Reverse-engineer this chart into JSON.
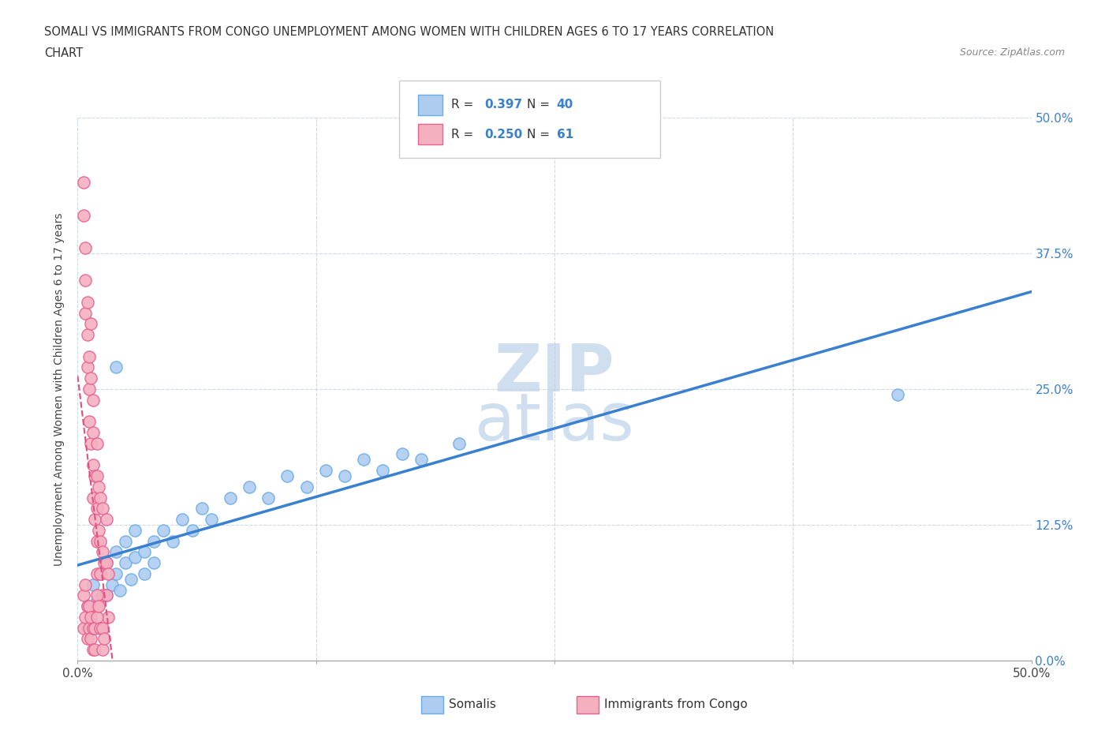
{
  "title_line1": "SOMALI VS IMMIGRANTS FROM CONGO UNEMPLOYMENT AMONG WOMEN WITH CHILDREN AGES 6 TO 17 YEARS CORRELATION",
  "title_line2": "CHART",
  "source_text": "Source: ZipAtlas.com",
  "ylabel": "Unemployment Among Women with Children Ages 6 to 17 years",
  "xlim": [
    0.0,
    0.5
  ],
  "ylim": [
    0.0,
    0.5
  ],
  "xticks": [
    0.0,
    0.125,
    0.25,
    0.375,
    0.5
  ],
  "yticks": [
    0.0,
    0.125,
    0.25,
    0.375,
    0.5
  ],
  "xtick_labels": [
    "0.0%",
    "12.5%",
    "25.0%",
    "37.5%",
    "50.0%"
  ],
  "ytick_labels": [
    "0.0%",
    "12.5%",
    "25.0%",
    "37.5%",
    "50.0%"
  ],
  "somali_color": "#aeccf0",
  "congo_color": "#f5b0c0",
  "somali_edge_color": "#6aace8",
  "congo_edge_color": "#e86090",
  "somali_line_color": "#3a80d0",
  "congo_line_color": "#e05080",
  "watermark_color": "#d0dff0",
  "background_color": "#ffffff",
  "somali_x": [
    0.005,
    0.005,
    0.008,
    0.01,
    0.012,
    0.015,
    0.015,
    0.018,
    0.02,
    0.02,
    0.022,
    0.025,
    0.025,
    0.028,
    0.03,
    0.03,
    0.035,
    0.035,
    0.04,
    0.04,
    0.045,
    0.05,
    0.055,
    0.06,
    0.065,
    0.07,
    0.08,
    0.09,
    0.1,
    0.11,
    0.12,
    0.13,
    0.14,
    0.15,
    0.16,
    0.17,
    0.18,
    0.2,
    0.43,
    0.02
  ],
  "somali_y": [
    0.05,
    0.03,
    0.07,
    0.055,
    0.08,
    0.06,
    0.09,
    0.07,
    0.08,
    0.1,
    0.065,
    0.09,
    0.11,
    0.075,
    0.095,
    0.12,
    0.1,
    0.08,
    0.11,
    0.09,
    0.12,
    0.11,
    0.13,
    0.12,
    0.14,
    0.13,
    0.15,
    0.16,
    0.15,
    0.17,
    0.16,
    0.175,
    0.17,
    0.185,
    0.175,
    0.19,
    0.185,
    0.2,
    0.245,
    0.27
  ],
  "congo_x": [
    0.003,
    0.003,
    0.004,
    0.004,
    0.004,
    0.005,
    0.005,
    0.005,
    0.006,
    0.006,
    0.006,
    0.007,
    0.007,
    0.007,
    0.008,
    0.008,
    0.008,
    0.008,
    0.009,
    0.009,
    0.01,
    0.01,
    0.01,
    0.01,
    0.01,
    0.01,
    0.011,
    0.011,
    0.012,
    0.012,
    0.012,
    0.013,
    0.013,
    0.013,
    0.014,
    0.015,
    0.015,
    0.015,
    0.016,
    0.016,
    0.003,
    0.003,
    0.004,
    0.004,
    0.005,
    0.005,
    0.006,
    0.006,
    0.007,
    0.007,
    0.008,
    0.008,
    0.009,
    0.009,
    0.01,
    0.01,
    0.011,
    0.012,
    0.013,
    0.013,
    0.014
  ],
  "congo_y": [
    0.44,
    0.41,
    0.38,
    0.35,
    0.32,
    0.3,
    0.27,
    0.33,
    0.25,
    0.28,
    0.22,
    0.31,
    0.26,
    0.2,
    0.24,
    0.18,
    0.15,
    0.21,
    0.17,
    0.13,
    0.2,
    0.17,
    0.14,
    0.11,
    0.08,
    0.05,
    0.16,
    0.12,
    0.15,
    0.11,
    0.08,
    0.14,
    0.1,
    0.06,
    0.09,
    0.13,
    0.09,
    0.06,
    0.08,
    0.04,
    0.06,
    0.03,
    0.07,
    0.04,
    0.05,
    0.02,
    0.05,
    0.03,
    0.04,
    0.02,
    0.03,
    0.01,
    0.03,
    0.01,
    0.06,
    0.04,
    0.05,
    0.03,
    0.03,
    0.01,
    0.02
  ]
}
